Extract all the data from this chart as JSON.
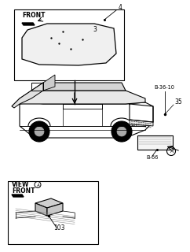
{
  "title": "",
  "background_color": "#ffffff",
  "line_color": "#000000",
  "light_line_color": "#888888",
  "labels": {
    "front_box": "FRONT",
    "part3": "3",
    "part4": "4",
    "ref_b3610": "B-36-10",
    "part35": "35",
    "ref_b66": "B-66",
    "view_label": "VIEW",
    "view_front": "FRONT",
    "part103": "103"
  },
  "figsize": [
    2.42,
    3.2
  ],
  "dpi": 100
}
